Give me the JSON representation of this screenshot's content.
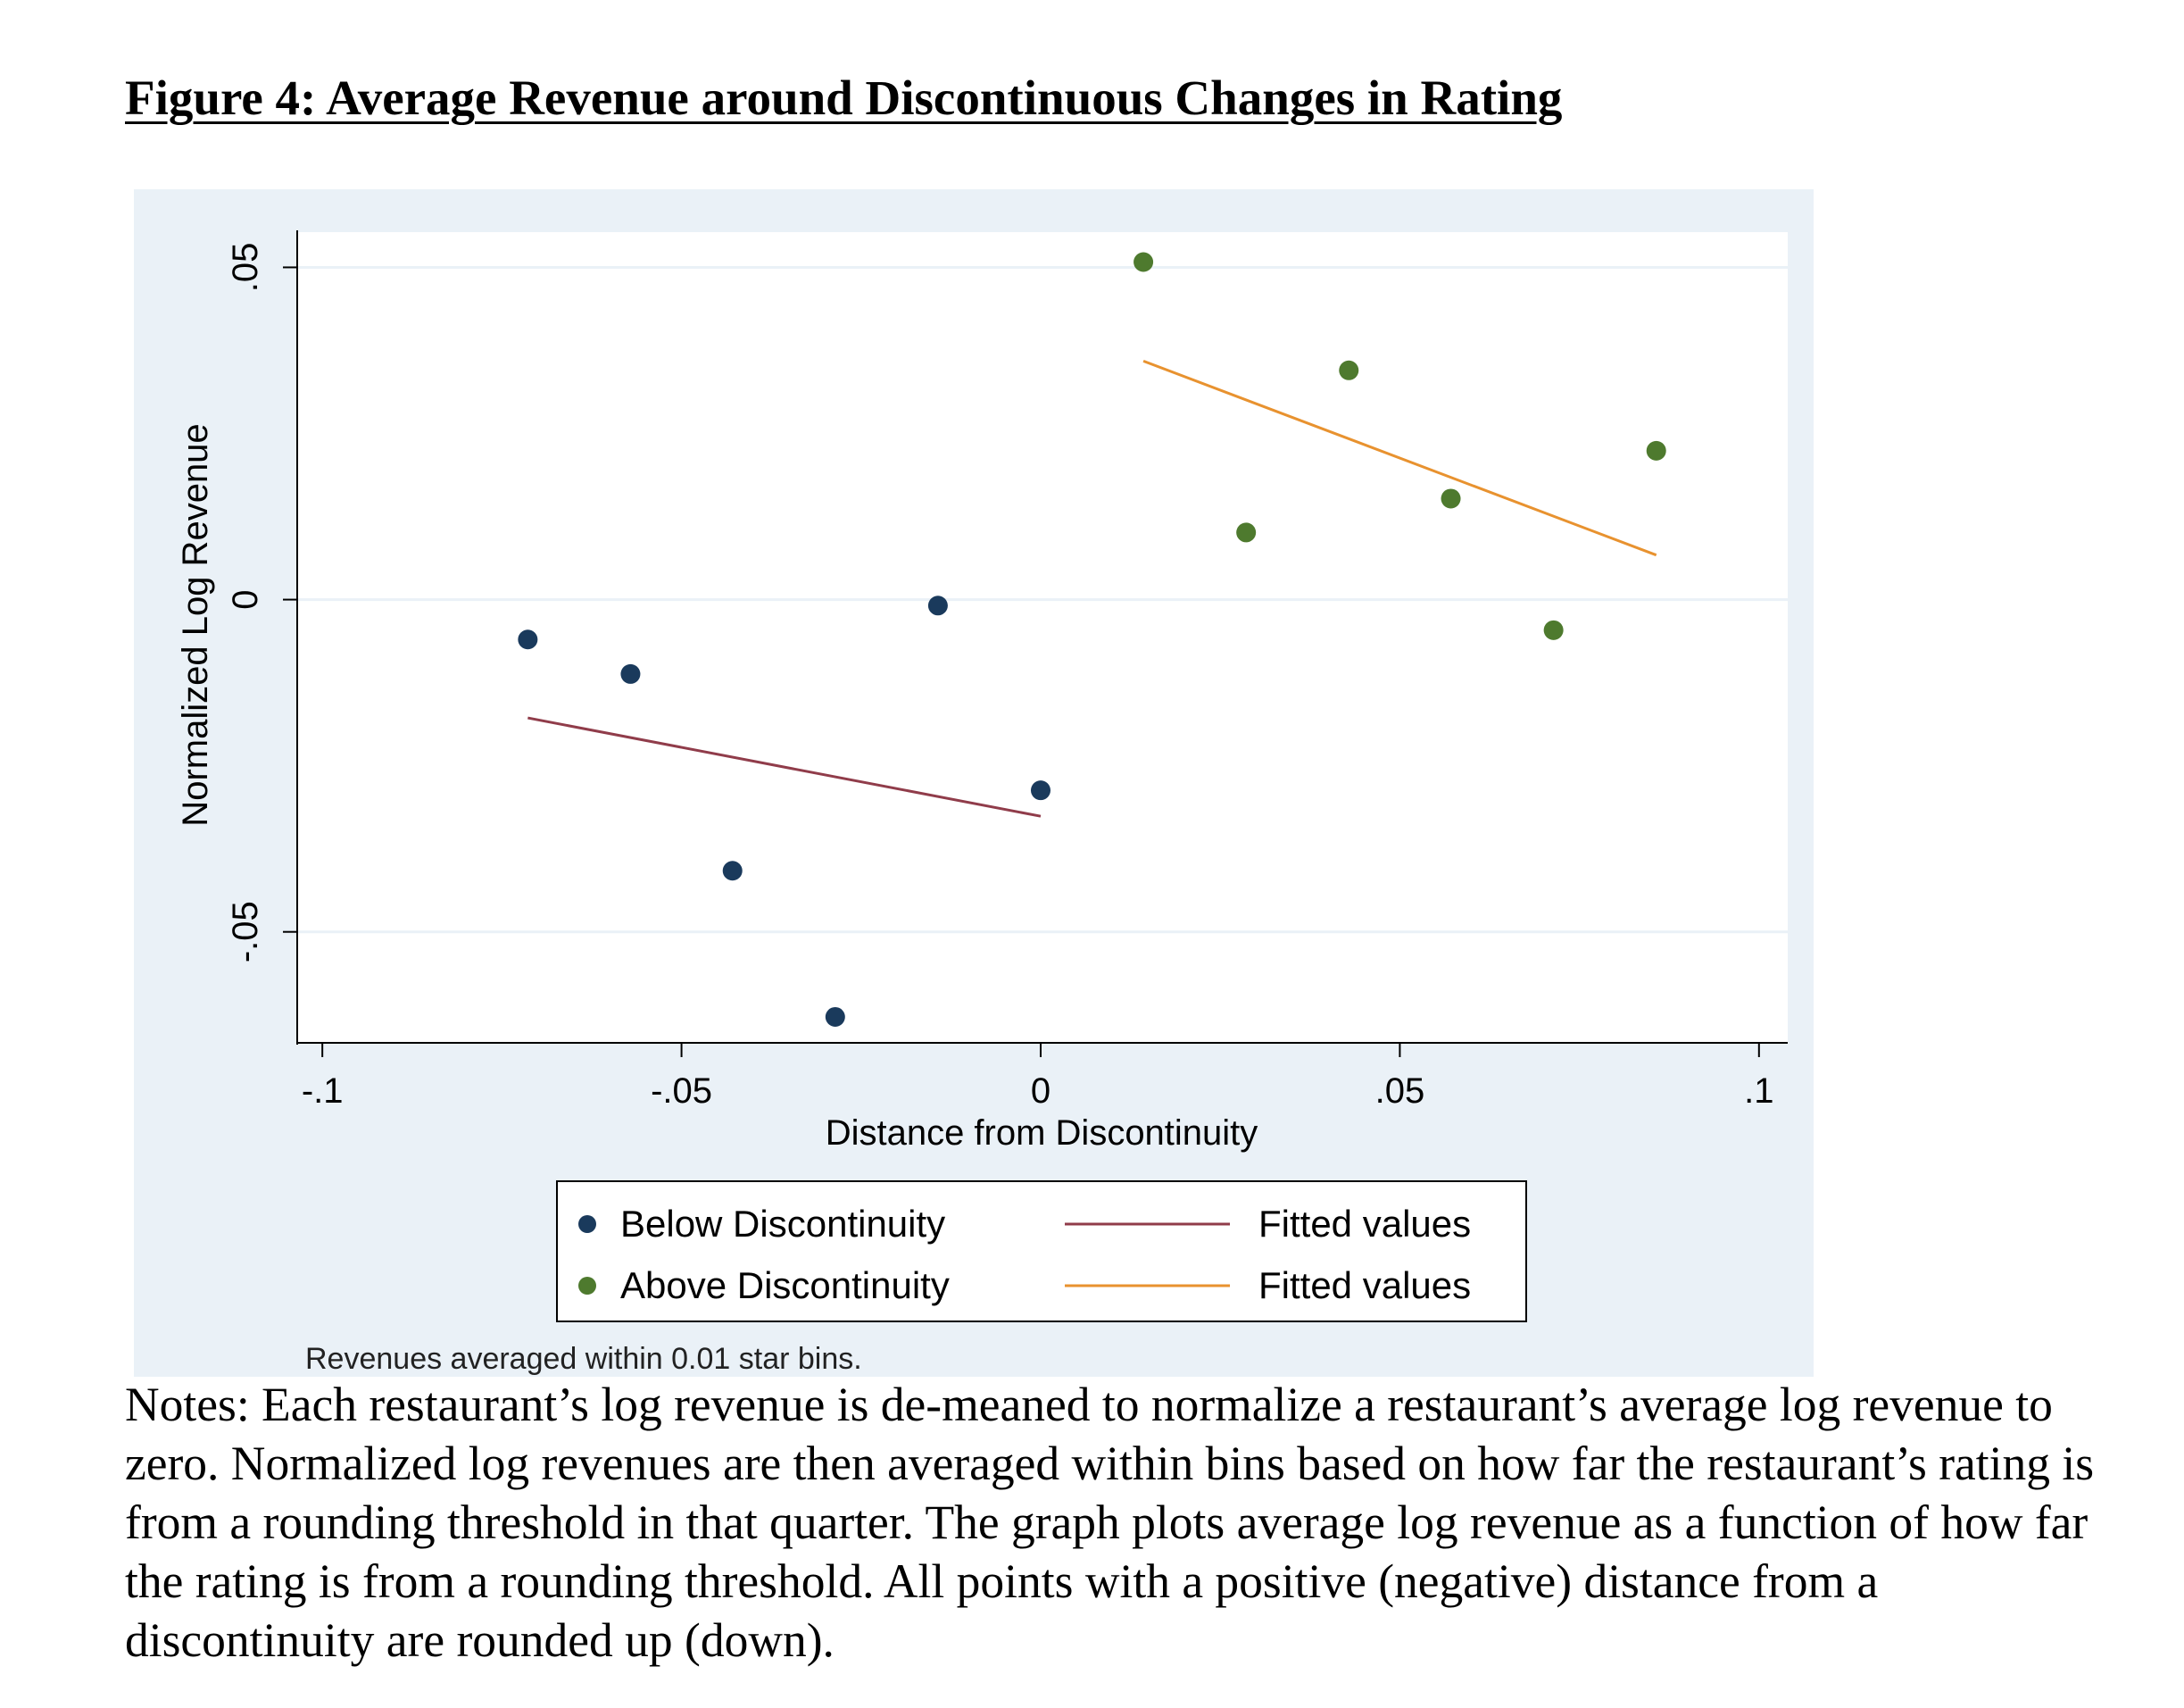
{
  "figure": {
    "title": "Figure 4: Average Revenue around Discontinuous Changes in Rating",
    "note_inside": "Revenues averaged within 0.01 star bins.",
    "notes": "Notes:  Each restaurant’s log revenue is de-meaned to normalize a restaurant’s average log revenue to zero.  Normalized log revenues are then averaged within bins based on how far the restaurant’s rating is from a rounding threshold in that quarter.  The graph plots average log revenue as a function of how far the rating is from a rounding threshold.  All points with a positive (negative) distance from a discontinuity are rounded up (down)."
  },
  "chart_data": {
    "type": "scatter",
    "title": "",
    "xlabel": "Distance from Discontinuity",
    "ylabel": "Normalized Log Revenue",
    "xlim": [
      -0.1035,
      0.104
    ],
    "ylim": [
      -0.0667,
      0.0553
    ],
    "xticks": [
      {
        "value": -0.1,
        "label": "-.1"
      },
      {
        "value": -0.05,
        "label": "-.05"
      },
      {
        "value": 0,
        "label": "0"
      },
      {
        "value": 0.05,
        "label": ".05"
      },
      {
        "value": 0.1,
        "label": ".1"
      }
    ],
    "yticks": [
      {
        "value": -0.05,
        "label": "-.05"
      },
      {
        "value": 0,
        "label": "0"
      },
      {
        "value": 0.05,
        "label": ".05"
      }
    ],
    "grid": true,
    "legend_position": "bottom",
    "series": [
      {
        "name": "Below Discontinuity",
        "kind": "scatter",
        "color": "#1a3a5c",
        "points": [
          {
            "x": -0.0714,
            "y": -0.006
          },
          {
            "x": -0.0571,
            "y": -0.0112
          },
          {
            "x": -0.0429,
            "y": -0.0408
          },
          {
            "x": -0.0286,
            "y": -0.0628
          },
          {
            "x": -0.0143,
            "y": -0.0009
          },
          {
            "x": 0.0,
            "y": -0.0287
          }
        ]
      },
      {
        "name": "Fitted values",
        "kind": "line",
        "color": "#903c4a",
        "points": [
          {
            "x": -0.0714,
            "y": -0.0178
          },
          {
            "x": 0.0,
            "y": -0.0326
          }
        ]
      },
      {
        "name": "Above Discontinuity",
        "kind": "scatter",
        "color": "#4e7a2e",
        "points": [
          {
            "x": 0.0143,
            "y": 0.0508
          },
          {
            "x": 0.0286,
            "y": 0.0101
          },
          {
            "x": 0.0429,
            "y": 0.0345
          },
          {
            "x": 0.0571,
            "y": 0.0152
          },
          {
            "x": 0.0714,
            "y": -0.0046
          },
          {
            "x": 0.0857,
            "y": 0.0224
          }
        ]
      },
      {
        "name": "Fitted values",
        "kind": "line",
        "color": "#e8922f",
        "points": [
          {
            "x": 0.0143,
            "y": 0.0359
          },
          {
            "x": 0.0857,
            "y": 0.0067
          }
        ]
      }
    ],
    "legend": [
      {
        "name": "Below Discontinuity",
        "symbol": "dot",
        "color": "#1a3a5c"
      },
      {
        "name": "Fitted values",
        "symbol": "line",
        "color": "#903c4a"
      },
      {
        "name": "Above Discontinuity",
        "symbol": "dot",
        "color": "#4e7a2e"
      },
      {
        "name": "Fitted values",
        "symbol": "line",
        "color": "#e8922f"
      }
    ],
    "colors": {
      "outer_background": "#eaf1f7",
      "plot_background": "#ffffff",
      "gridline": "#eaf1f7",
      "axis": "#000000"
    }
  }
}
